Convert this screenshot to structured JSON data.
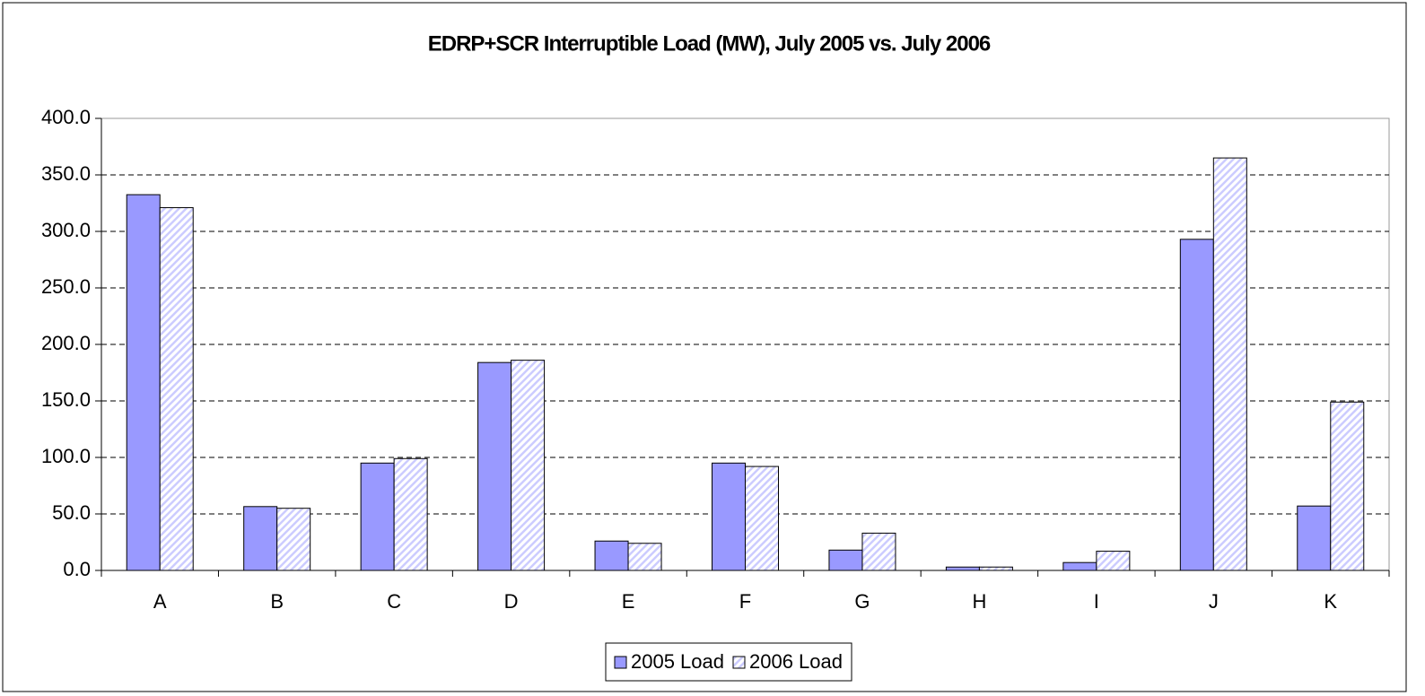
{
  "chart_data": {
    "type": "bar",
    "title": "EDRP+SCR Interruptible Load (MW), July 2005 vs. July 2006",
    "categories": [
      "A",
      "B",
      "C",
      "D",
      "E",
      "F",
      "G",
      "H",
      "I",
      "J",
      "K"
    ],
    "series": [
      {
        "name": "2005 Load",
        "color": "#9999ff",
        "values": [
          332.5,
          56.5,
          95,
          184,
          26,
          95,
          18,
          3,
          7,
          293,
          57
        ]
      },
      {
        "name": "2006 Load",
        "color": "#ccccff",
        "pattern": "diagonal-hatch",
        "values": [
          321,
          55,
          99,
          186,
          24,
          92,
          33,
          3,
          17,
          365,
          149
        ]
      }
    ],
    "ylim": [
      0,
      400
    ],
    "yticks": [
      {
        "value": 0,
        "label": "0.0"
      },
      {
        "value": 50,
        "label": "50.0"
      },
      {
        "value": 100,
        "label": "100.0"
      },
      {
        "value": 150,
        "label": "150.0"
      },
      {
        "value": 200,
        "label": "200.0"
      },
      {
        "value": 250,
        "label": "250.0"
      },
      {
        "value": 300,
        "label": "300.0"
      },
      {
        "value": 350,
        "label": "350.0"
      },
      {
        "value": 400,
        "label": "400.0"
      }
    ],
    "grid": true,
    "legend": "bottom"
  }
}
